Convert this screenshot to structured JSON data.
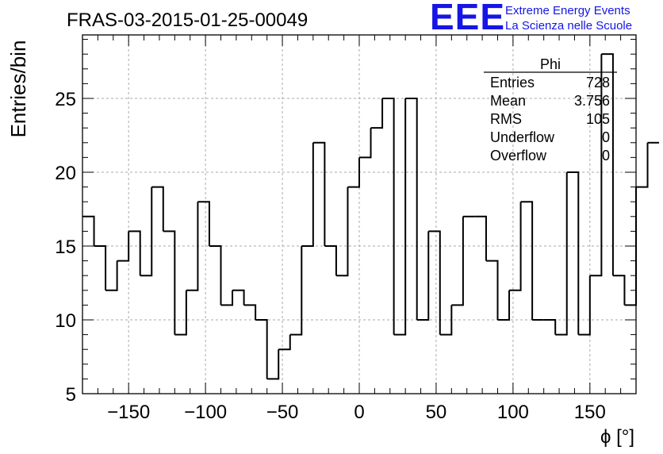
{
  "header": {
    "title": "FRAS-03-2015-01-25-00049",
    "logo_letters": "EEE",
    "logo_line1": "Extreme Energy Events",
    "logo_line2": "La Scienza nelle Scuole",
    "logo_color": "#1515e6"
  },
  "stats": {
    "name": "Phi",
    "rows": [
      {
        "label": "Entries",
        "value": "728"
      },
      {
        "label": "Mean",
        "value": "3.756"
      },
      {
        "label": "RMS",
        "value": "105"
      },
      {
        "label": "Underflow",
        "value": "0"
      },
      {
        "label": "Overflow",
        "value": "0"
      }
    ]
  },
  "chart_data": {
    "type": "histogram",
    "title": "FRAS-03-2015-01-25-00049",
    "xlabel": "ϕ [°]",
    "ylabel": "Entries/bin",
    "xlim": [
      -180,
      180
    ],
    "ylim": [
      5,
      29.3
    ],
    "bin_width": 7.5,
    "bin_edges_start": -180,
    "values": [
      17,
      15,
      12,
      14,
      16,
      13,
      19,
      16,
      9,
      12,
      18,
      15,
      11,
      12,
      11,
      10,
      6,
      8,
      9,
      15,
      22,
      15,
      13,
      19,
      21,
      23,
      25,
      9,
      25,
      10,
      16,
      9,
      11,
      17,
      17,
      14,
      10,
      12,
      18,
      10,
      10,
      9,
      20,
      9,
      13,
      28,
      13,
      11,
      19,
      22
    ],
    "x_ticks": [
      -150,
      -100,
      -50,
      0,
      50,
      100,
      150
    ],
    "y_ticks": [
      5,
      10,
      15,
      20,
      25
    ],
    "grid": true,
    "legend": "stats box top-right"
  }
}
